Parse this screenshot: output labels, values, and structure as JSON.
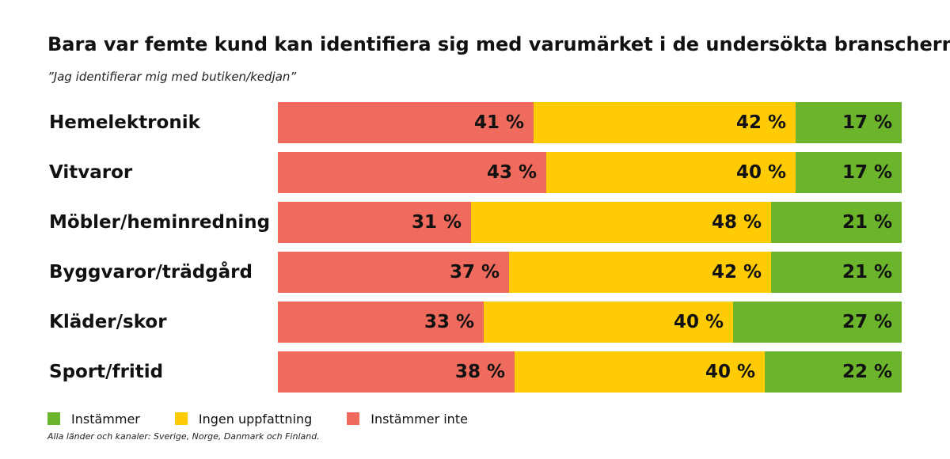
{
  "chart_data": {
    "type": "bar",
    "orientation": "horizontal",
    "stacked": true,
    "title": "Bara var femte kund kan identifiera sig med varumärket i de undersökta branscherna",
    "subtitle": "”Jag identifierar mig med butiken/kedjan”",
    "categories": [
      "Hemelektronik",
      "Vitvaror",
      "Möbler/heminredning",
      "Byggvaror/trädgård",
      "Kläder/skor",
      "Sport/fritid"
    ],
    "series": [
      {
        "name": "Instämmer inte",
        "color": "#EE6B5E",
        "values": [
          41,
          43,
          31,
          37,
          33,
          38
        ],
        "labels": [
          "41 %",
          "43 %",
          "31 %",
          "37 %",
          "33 %",
          "38 %"
        ]
      },
      {
        "name": "Ingen uppfattning",
        "color": "#FFCB05",
        "values": [
          42,
          40,
          48,
          42,
          40,
          40
        ],
        "labels": [
          "42 %",
          "40 %",
          "48 %",
          "42 %",
          "40 %",
          "40 %"
        ]
      },
      {
        "name": "Instämmer",
        "color": "#6CB42C",
        "values": [
          17,
          17,
          21,
          21,
          27,
          22
        ],
        "labels": [
          "17 %",
          "17 %",
          "21 %",
          "21 %",
          "27 %",
          "22 %"
        ]
      }
    ],
    "legend": [
      {
        "name": "Instämmer",
        "color": "#6CB42C"
      },
      {
        "name": "Ingen uppfattning",
        "color": "#FFCB05"
      },
      {
        "name": "Instämmer inte",
        "color": "#EE6B5E"
      }
    ],
    "legend_position": "bottom-left",
    "xlim": [
      0,
      100
    ],
    "grid": false,
    "footnote": "Alla länder och kanaler: Sverige, Norge, Danmark och Finland."
  }
}
